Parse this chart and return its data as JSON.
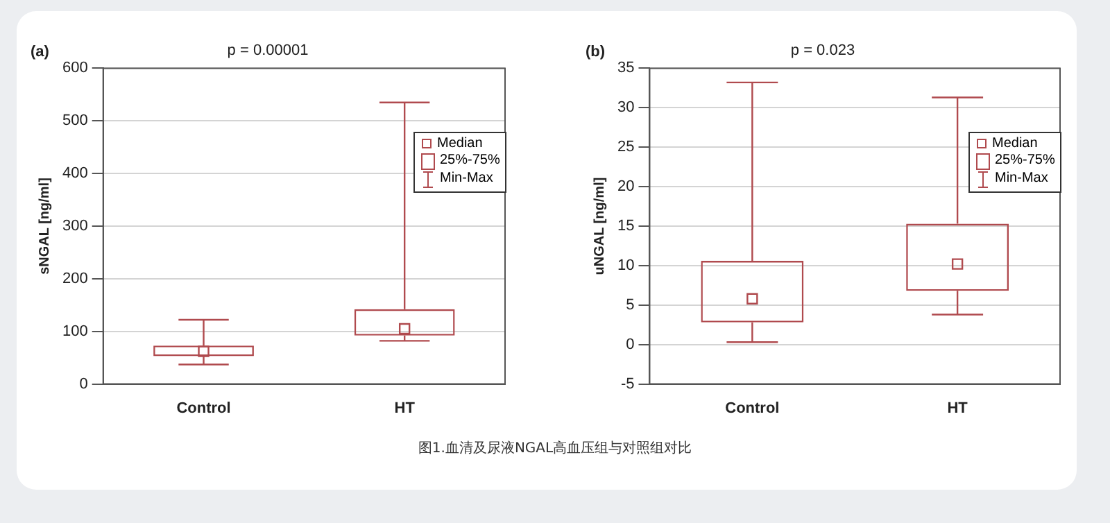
{
  "chart_data": [
    {
      "type": "box",
      "title": "p = 0.00001",
      "ylabel": "sNGAL [ng/ml]",
      "categories": [
        "Control",
        "HT"
      ],
      "color": "#b04a4e",
      "ylim": [
        0,
        600
      ],
      "yticks": [
        0,
        100,
        200,
        300,
        400,
        500,
        600
      ],
      "grid": "y",
      "boxes": [
        {
          "low": 37,
          "q1": 53,
          "median": 62,
          "q3": 73,
          "high": 122
        },
        {
          "low": 82,
          "q1": 92,
          "median": 105,
          "q3": 142,
          "high": 535
        }
      ],
      "annotations": [
        "(a)",
        "Median",
        "25%-75%",
        "Min-Max",
        "图1.血清及尿液NGAL高血压组与对照组对比"
      ]
    },
    {
      "type": "box",
      "title": "p = 0.023",
      "ylabel": "uNGAL [ng/ml]",
      "categories": [
        "Control",
        "HT"
      ],
      "color": "#b04a4e",
      "ylim": [
        -5,
        35
      ],
      "yticks": [
        -5,
        0,
        5,
        10,
        15,
        20,
        25,
        30,
        35
      ],
      "grid": "y",
      "boxes": [
        {
          "low": 0.3,
          "q1": 2.8,
          "median": 5.8,
          "q3": 10.6,
          "high": 33.2
        },
        {
          "low": 3.8,
          "q1": 6.8,
          "median": 10.2,
          "q3": 15.3,
          "high": 31.3
        }
      ],
      "annotations": [
        "(b)",
        "Median",
        "25%-75%",
        "Min-Max"
      ]
    }
  ]
}
